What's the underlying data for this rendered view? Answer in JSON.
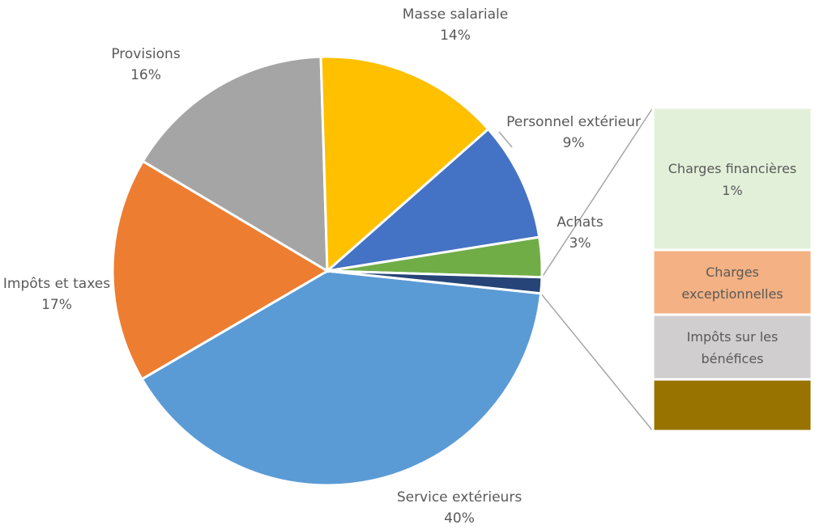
{
  "chart_data": {
    "type": "pie",
    "subtype": "bar-of-pie",
    "slices": [
      {
        "label": "Service extérieurs",
        "pct_label": "40%",
        "value": 40,
        "color": "#5B9BD5"
      },
      {
        "label": "Impôts et taxes",
        "pct_label": "17%",
        "value": 17,
        "color": "#ED7D31"
      },
      {
        "label": "Provisions",
        "pct_label": "16%",
        "value": 16,
        "color": "#A5A5A5"
      },
      {
        "label": "Masse salariale",
        "pct_label": "14%",
        "value": 14,
        "color": "#FFC000"
      },
      {
        "label": "Personnel extérieur",
        "pct_label": "9%",
        "value": 9,
        "color": "#4472C4"
      },
      {
        "label": "Achats",
        "pct_label": "3%",
        "value": 3,
        "color": "#70AD47"
      },
      {
        "label": "",
        "pct_label": "",
        "value": 1.2,
        "color": "#264478",
        "is_other": true
      }
    ],
    "breakdown": [
      {
        "label_lines": [
          "Charges financières",
          "1%"
        ],
        "value": 0.55,
        "color": "#E2F0D9"
      },
      {
        "label_lines": [
          "Charges",
          "exceptionnelles"
        ],
        "value": 0.25,
        "color": "#F4B183"
      },
      {
        "label_lines": [
          "Impôts sur les",
          "bénéfices"
        ],
        "value": 0.25,
        "color": "#D0CECE"
      },
      {
        "label_lines": [],
        "value": 0.2,
        "color": "#997300"
      }
    ],
    "title": "",
    "legend": "none"
  }
}
